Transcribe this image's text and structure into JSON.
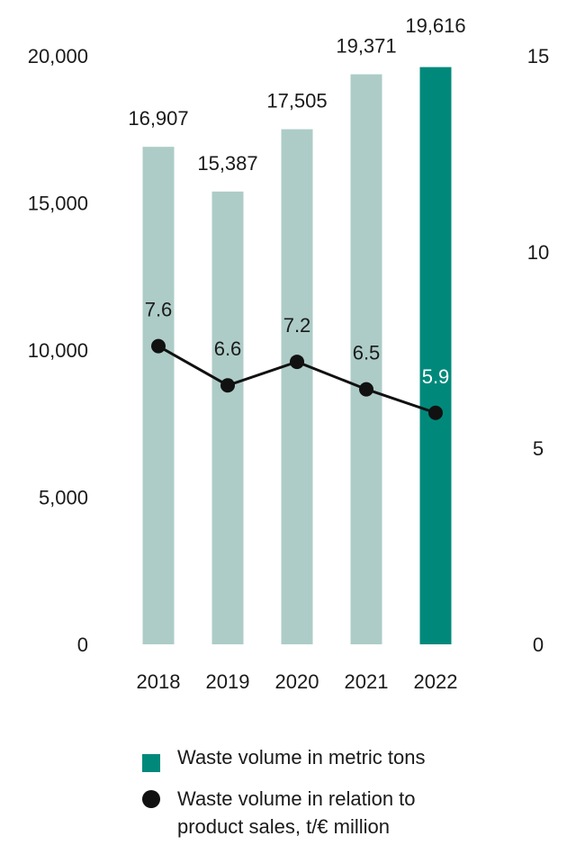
{
  "chart_data": {
    "type": "bar",
    "categories": [
      "2018",
      "2019",
      "2020",
      "2021",
      "2022"
    ],
    "series": [
      {
        "name": "Waste volume in metric tons",
        "type": "bar",
        "axis": "left",
        "values": [
          16907,
          15387,
          17505,
          19371,
          19616
        ],
        "labels": [
          "16,907",
          "15,387",
          "17,505",
          "19,371",
          "19,616"
        ]
      },
      {
        "name": "Waste volume in relation to product sales, t/€ million",
        "type": "line",
        "axis": "right",
        "values": [
          7.6,
          6.6,
          7.2,
          6.5,
          5.9
        ],
        "labels": [
          "7.6",
          "6.6",
          "7.2",
          "6.5",
          "5.9"
        ]
      }
    ],
    "y_left": {
      "ylim": [
        0,
        20000
      ],
      "ticks": [
        "0",
        "5,000",
        "10,000",
        "15,000",
        "20,000"
      ]
    },
    "y_right": {
      "ylim": [
        0,
        15
      ],
      "ticks": [
        "0",
        "5",
        "10",
        "15"
      ]
    },
    "grid": false,
    "legend_position": "bottom",
    "colors": {
      "bar_default": "#adccc7",
      "bar_highlight": "#00897b",
      "line": "#111111",
      "label_on_highlight": "#ffffff"
    }
  },
  "legend": {
    "items": [
      {
        "label": "Waste volume in metric tons",
        "swatch": "square",
        "color": "#00897b"
      },
      {
        "label": "Waste volume in relation to\nproduct sales, t/€ million",
        "swatch": "dot",
        "color": "#111111"
      }
    ]
  }
}
